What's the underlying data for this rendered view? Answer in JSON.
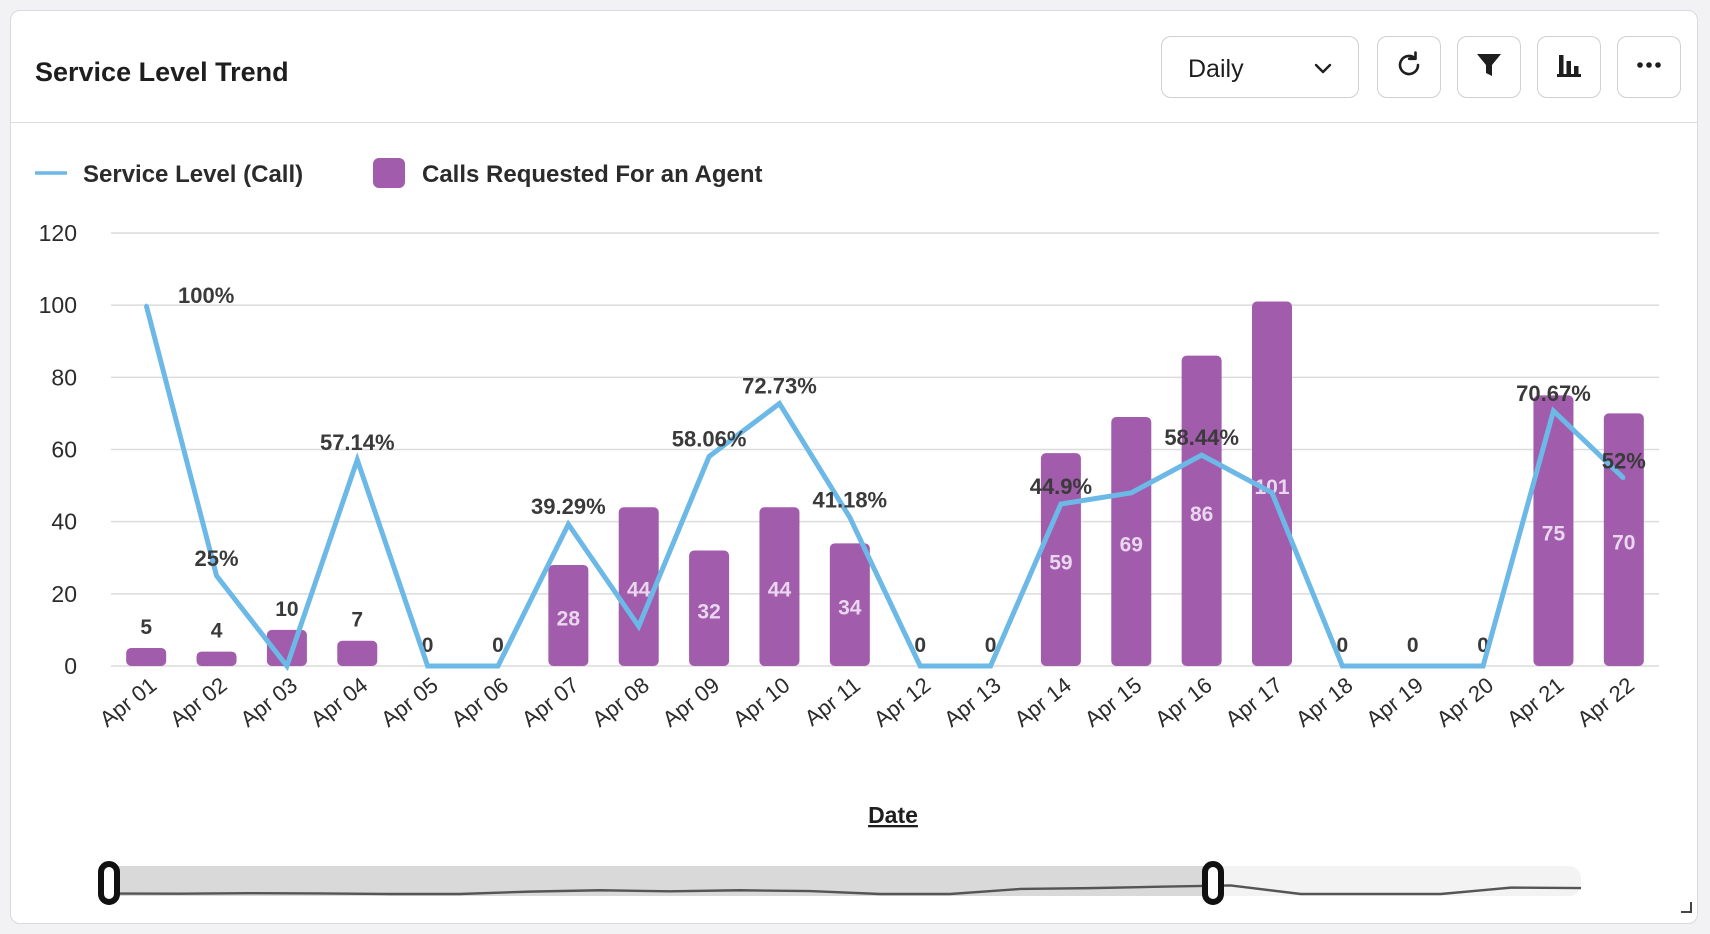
{
  "header": {
    "title": "Service Level Trend",
    "period_select": {
      "selected": "Daily"
    },
    "tools": [
      {
        "icon": "refresh-icon"
      },
      {
        "icon": "filter-icon"
      },
      {
        "icon": "bar-chart-icon"
      },
      {
        "icon": "more-icon"
      }
    ]
  },
  "colors": {
    "line": "#6cb8e6",
    "bar": "#a15cab",
    "grid": "#dcdcdc",
    "text": "#3a3a3a"
  },
  "chart_data": {
    "type": "bar+line",
    "xlabel": "Date",
    "ylabel": "",
    "ylim": [
      0,
      120
    ],
    "yticks": [
      0,
      20,
      40,
      60,
      80,
      100,
      120
    ],
    "grid": true,
    "legend_placement": "top-left",
    "categories": [
      "Apr 01",
      "Apr 02",
      "Apr 03",
      "Apr 04",
      "Apr 05",
      "Apr 06",
      "Apr 07",
      "Apr 08",
      "Apr 09",
      "Apr 10",
      "Apr 11",
      "Apr 12",
      "Apr 13",
      "Apr 14",
      "Apr 15",
      "Apr 16",
      "Apr 17",
      "Apr 18",
      "Apr 19",
      "Apr 20",
      "Apr 21",
      "Apr 22"
    ],
    "series": [
      {
        "name": "Service Level (Call)",
        "kind": "line",
        "values": [
          100,
          25,
          0,
          57.14,
          0,
          0,
          39.29,
          11,
          58.06,
          72.73,
          41.18,
          0,
          0,
          44.9,
          48,
          58.44,
          48,
          0,
          0,
          0,
          70.67,
          52
        ],
        "labels": [
          "100%",
          "25%",
          "",
          "57.14%",
          "",
          "",
          "39.29%",
          "",
          "58.06%",
          "72.73%",
          "41.18%",
          "",
          "",
          "44.9%",
          "",
          "58.44%",
          "",
          "",
          "",
          "",
          "70.67%",
          "52%"
        ]
      },
      {
        "name": "Calls Requested For an Agent",
        "kind": "bar",
        "values": [
          5,
          4,
          10,
          7,
          0,
          0,
          28,
          44,
          32,
          44,
          34,
          0,
          0,
          59,
          69,
          86,
          101,
          0,
          0,
          0,
          75,
          70
        ]
      }
    ]
  }
}
